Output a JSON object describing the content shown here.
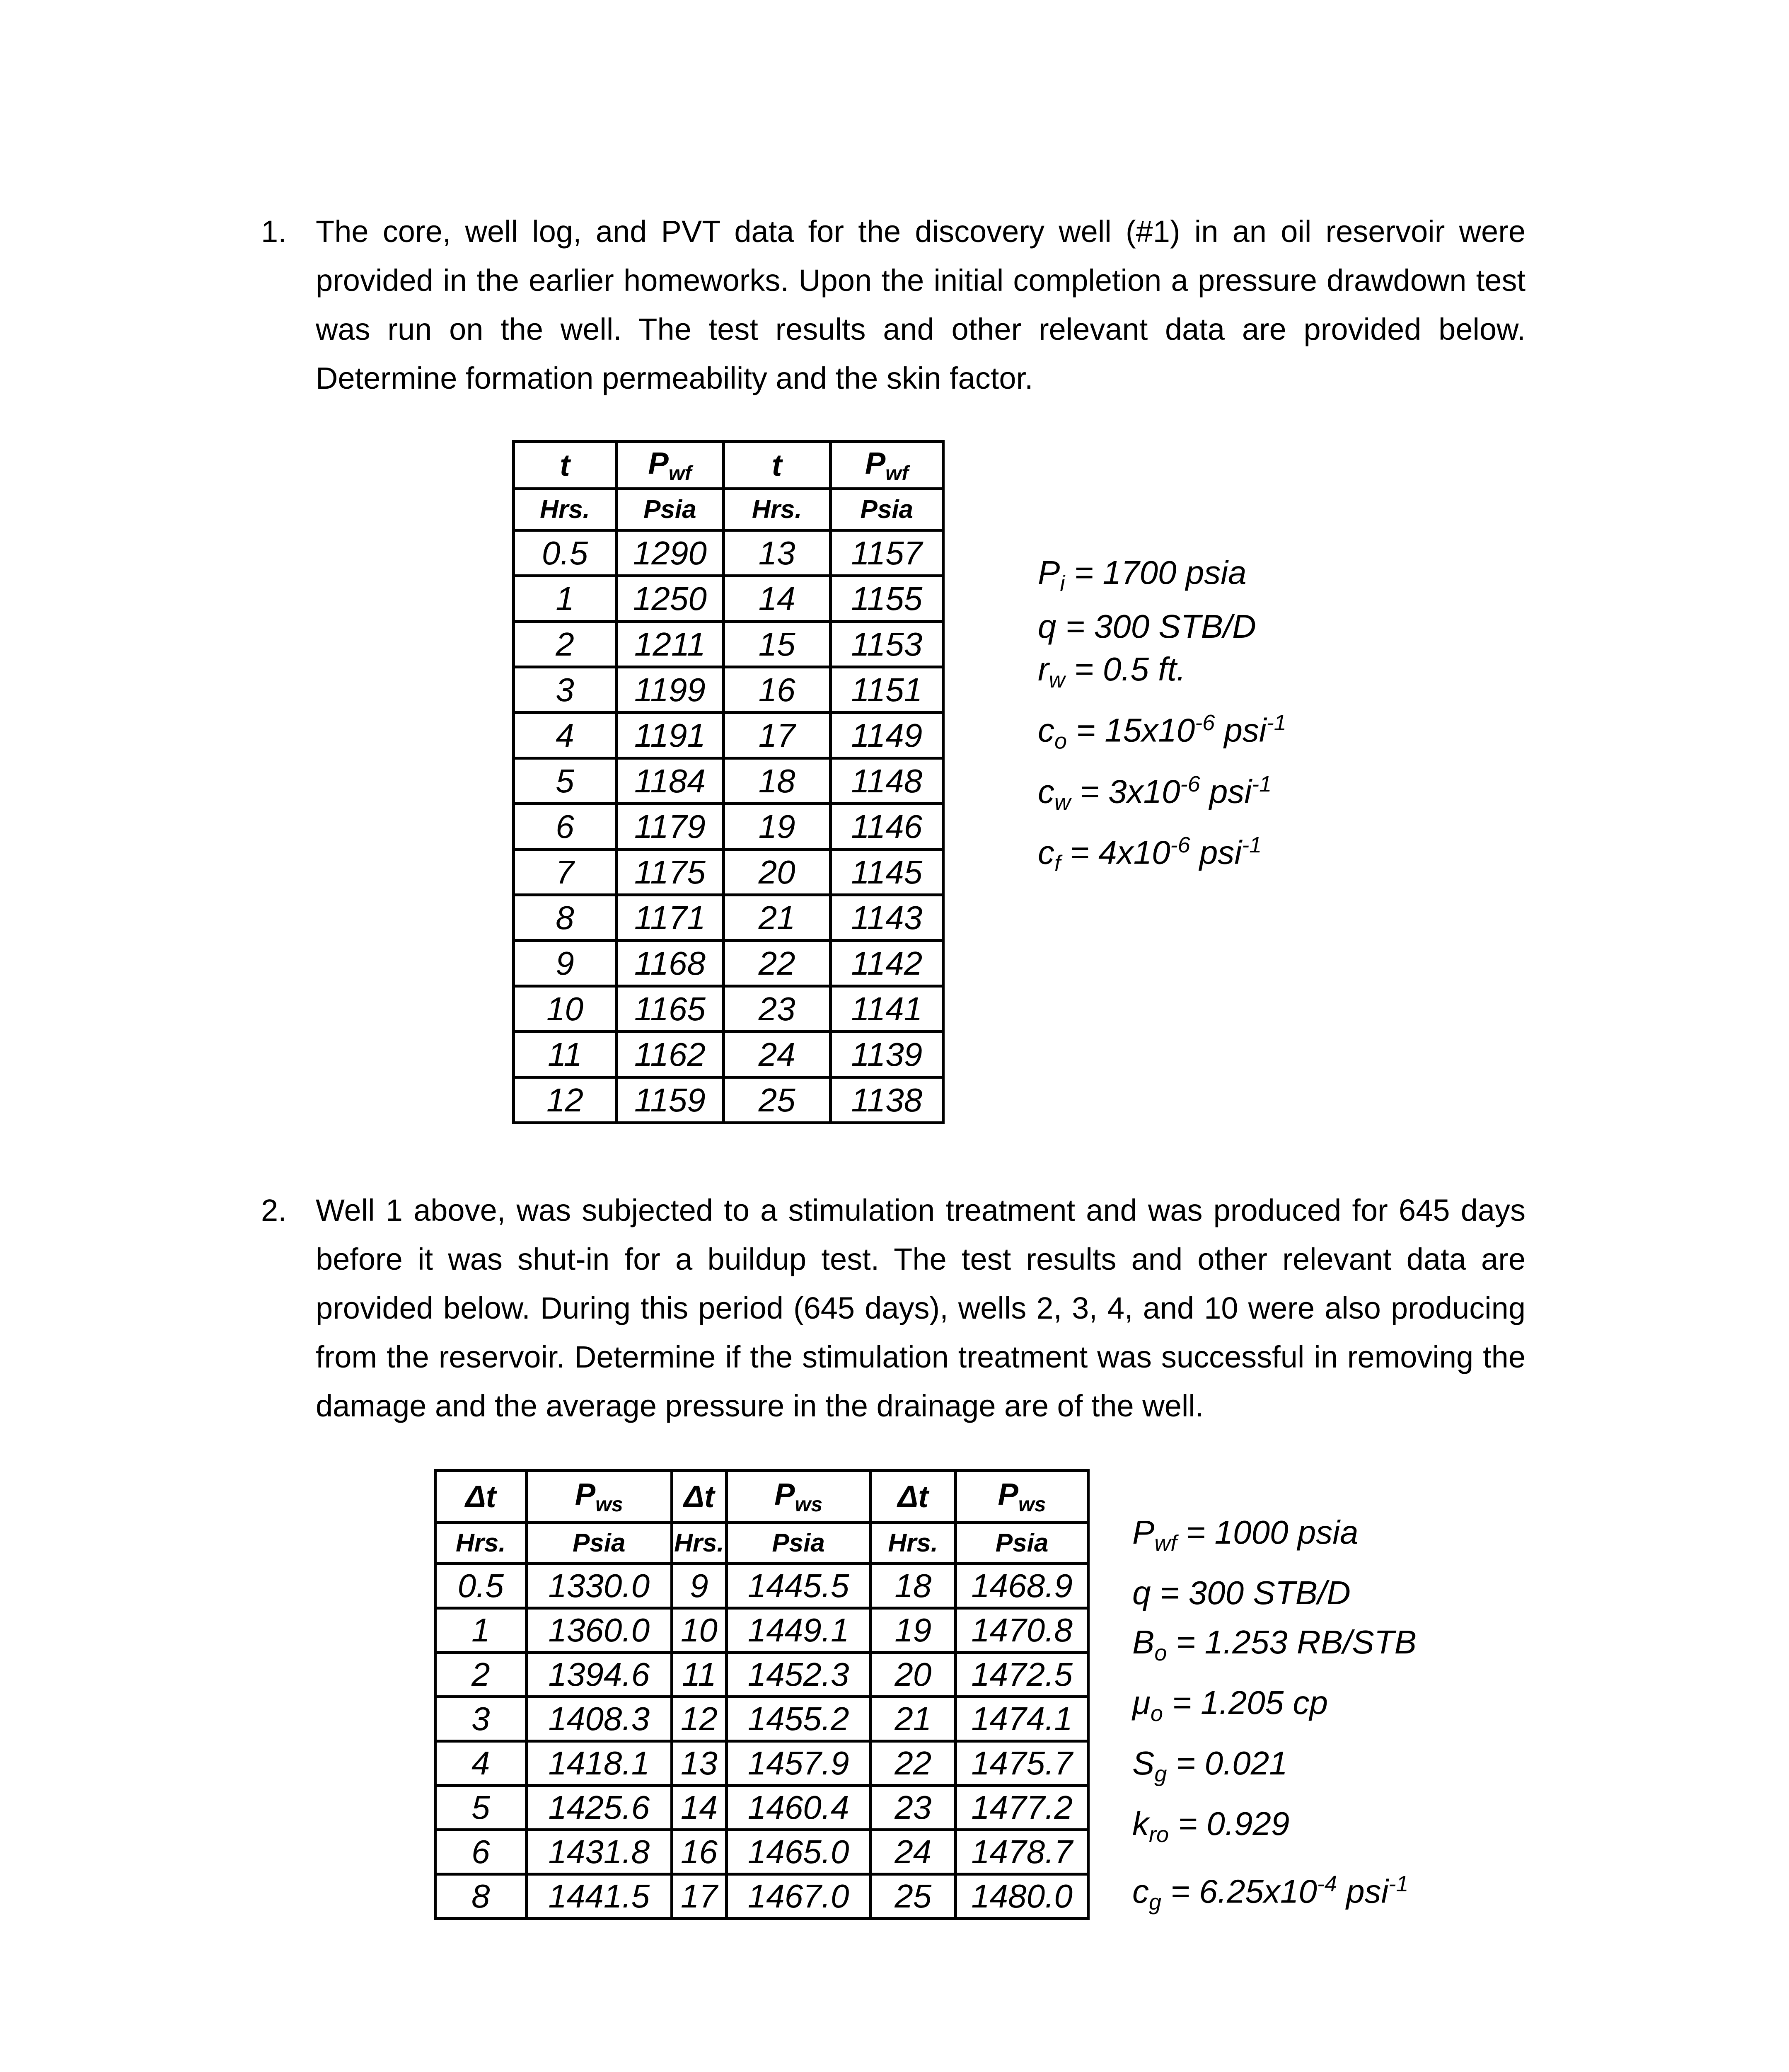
{
  "q1": {
    "number": "1.",
    "text": "The core, well log, and PVT data for the discovery well (#1) in an oil reservoir were provided in the earlier homeworks. Upon the initial completion a pressure drawdown test was run on the well. The test results and other relevant data are provided below. Determine formation permeability and the skin factor.",
    "table": {
      "header1": [
        {
          "sym": "t",
          "sub": ""
        },
        {
          "sym": "P",
          "sub": "wf"
        },
        {
          "sym": "t",
          "sub": ""
        },
        {
          "sym": "P",
          "sub": "wf"
        }
      ],
      "header2": [
        "Hrs.",
        "Psia",
        "Hrs.",
        "Psia"
      ],
      "rows": [
        [
          "0.5",
          "1290",
          "13",
          "1157"
        ],
        [
          "1",
          "1250",
          "14",
          "1155"
        ],
        [
          "2",
          "1211",
          "15",
          "1153"
        ],
        [
          "3",
          "1199",
          "16",
          "1151"
        ],
        [
          "4",
          "1191",
          "17",
          "1149"
        ],
        [
          "5",
          "1184",
          "18",
          "1148"
        ],
        [
          "6",
          "1179",
          "19",
          "1146"
        ],
        [
          "7",
          "1175",
          "20",
          "1145"
        ],
        [
          "8",
          "1171",
          "21",
          "1143"
        ],
        [
          "9",
          "1168",
          "22",
          "1142"
        ],
        [
          "10",
          "1165",
          "23",
          "1141"
        ],
        [
          "11",
          "1162",
          "24",
          "1139"
        ],
        [
          "12",
          "1159",
          "25",
          "1138"
        ]
      ]
    },
    "params": [
      [
        {
          "t": "P",
          "s": "n"
        },
        {
          "t": "i",
          "s": "sub"
        },
        {
          "t": " = 1700 psia",
          "s": "n"
        }
      ],
      [
        {
          "t": "q = 300 STB/D",
          "s": "n"
        }
      ],
      [
        {
          "t": "r",
          "s": "n"
        },
        {
          "t": "w",
          "s": "sub"
        },
        {
          "t": " = 0.5 ft.",
          "s": "n"
        }
      ],
      [
        {
          "t": "c",
          "s": "n"
        },
        {
          "t": "o",
          "s": "sub"
        },
        {
          "t": " = 15x10",
          "s": "n"
        },
        {
          "t": "-6",
          "s": "sup"
        },
        {
          "t": " psi",
          "s": "n"
        },
        {
          "t": "-1",
          "s": "sup"
        }
      ],
      [
        {
          "t": "c",
          "s": "n"
        },
        {
          "t": "w",
          "s": "sub"
        },
        {
          "t": " = 3x10",
          "s": "n"
        },
        {
          "t": "-6",
          "s": "sup"
        },
        {
          "t": " psi",
          "s": "n"
        },
        {
          "t": "-1",
          "s": "sup"
        }
      ],
      [
        {
          "t": "c",
          "s": "n"
        },
        {
          "t": "f",
          "s": "sub"
        },
        {
          "t": " = 4x10",
          "s": "n"
        },
        {
          "t": "-6",
          "s": "sup"
        },
        {
          "t": " psi",
          "s": "n"
        },
        {
          "t": "-1",
          "s": "sup"
        }
      ]
    ]
  },
  "q2": {
    "number": "2.",
    "text": "Well 1 above, was subjected to a stimulation treatment and was produced for 645 days before it was shut-in for a buildup test. The test results and other relevant data are provided below. During this period (645 days), wells 2, 3, 4, and 10 were also producing from the reservoir. Determine if the stimulation treatment was successful in removing the damage and the average pressure in the drainage are of the well.",
    "table": {
      "header1": [
        {
          "sym": "Δt",
          "sub": ""
        },
        {
          "sym": "P",
          "sub": "ws"
        },
        {
          "sym": "Δt",
          "sub": ""
        },
        {
          "sym": "P",
          "sub": "ws"
        },
        {
          "sym": "Δt",
          "sub": ""
        },
        {
          "sym": "P",
          "sub": "ws"
        }
      ],
      "header2": [
        "Hrs.",
        "Psia",
        "Hrs.",
        "Psia",
        "Hrs.",
        "Psia"
      ],
      "rows": [
        [
          "0.5",
          "1330.0",
          "9",
          "1445.5",
          "18",
          "1468.9"
        ],
        [
          "1",
          "1360.0",
          "10",
          "1449.1",
          "19",
          "1470.8"
        ],
        [
          "2",
          "1394.6",
          "11",
          "1452.3",
          "20",
          "1472.5"
        ],
        [
          "3",
          "1408.3",
          "12",
          "1455.2",
          "21",
          "1474.1"
        ],
        [
          "4",
          "1418.1",
          "13",
          "1457.9",
          "22",
          "1475.7"
        ],
        [
          "5",
          "1425.6",
          "14",
          "1460.4",
          "23",
          "1477.2"
        ],
        [
          "6",
          "1431.8",
          "16",
          "1465.0",
          "24",
          "1478.7"
        ],
        [
          "8",
          "1441.5",
          "17",
          "1467.0",
          "25",
          "1480.0"
        ]
      ]
    },
    "params": [
      [
        {
          "t": "P",
          "s": "n"
        },
        {
          "t": "wf",
          "s": "sub"
        },
        {
          "t": " = 1000 psia",
          "s": "n"
        }
      ],
      [
        {
          "t": "q = 300 STB/D",
          "s": "n"
        }
      ],
      [
        {
          "t": "B",
          "s": "n"
        },
        {
          "t": "o",
          "s": "sub"
        },
        {
          "t": " = 1.253 RB/STB",
          "s": "n"
        }
      ],
      [
        {
          "t": "μ",
          "s": "n"
        },
        {
          "t": "o",
          "s": "sub"
        },
        {
          "t": " = 1.205 cp",
          "s": "n"
        }
      ],
      [
        {
          "t": "S",
          "s": "n"
        },
        {
          "t": "g",
          "s": "sub"
        },
        {
          "t": " = 0.021",
          "s": "n"
        }
      ],
      [
        {
          "t": "k",
          "s": "n"
        },
        {
          "t": "ro",
          "s": "sub"
        },
        {
          "t": " = 0.929",
          "s": "n"
        }
      ],
      [
        {
          "t": "c",
          "s": "n"
        },
        {
          "t": "g",
          "s": "sub"
        },
        {
          "t": " = 6.25x10",
          "s": "n"
        },
        {
          "t": "-4",
          "s": "sup"
        },
        {
          "t": " psi",
          "s": "n"
        },
        {
          "t": "-1",
          "s": "sup"
        }
      ]
    ]
  }
}
